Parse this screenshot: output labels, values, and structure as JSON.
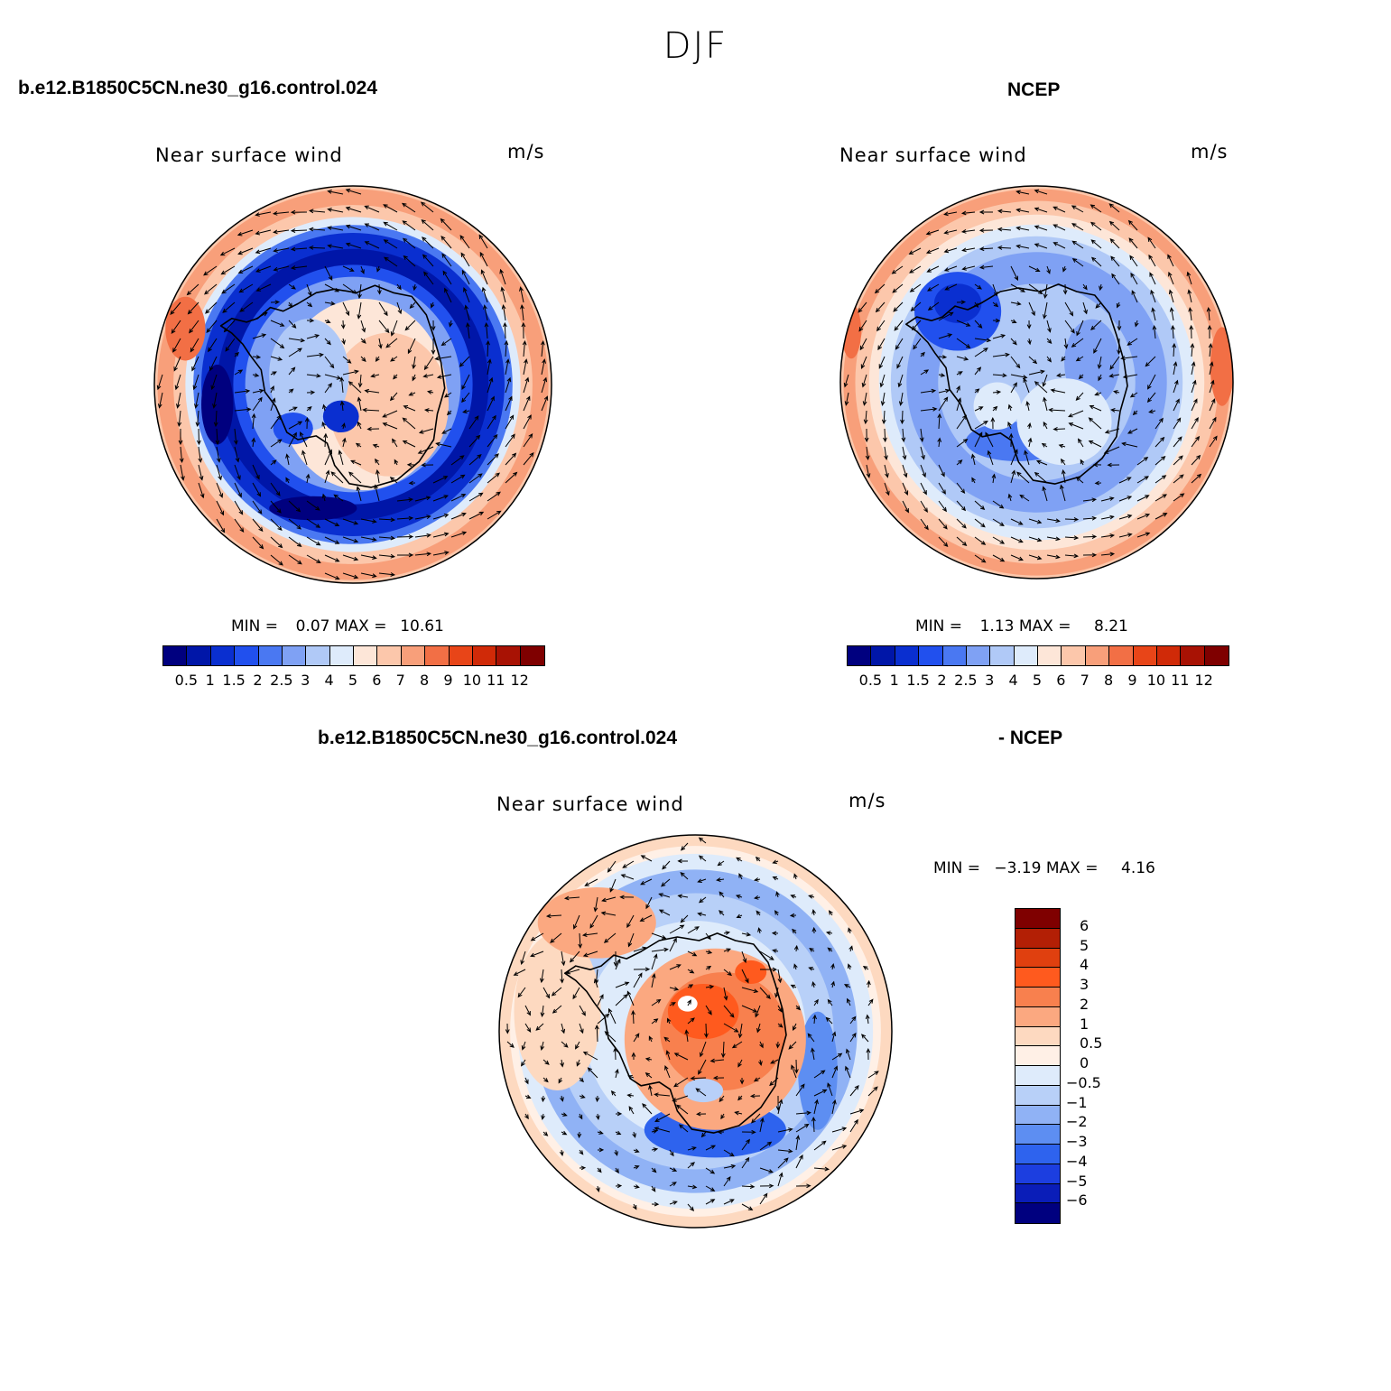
{
  "figure": {
    "title": "DJF"
  },
  "panels": [
    {
      "id": "model",
      "case_title": "b.e12.B1850C5CN.ne30_g16.control.024",
      "left_label": "Near surface wind",
      "right_label": "m/s",
      "min_label": "MIN =",
      "min_value": "0.07",
      "max_label": "MAX =",
      "max_value": "10.61",
      "pattern": "model"
    },
    {
      "id": "obs",
      "case_title": "NCEP",
      "left_label": "Near surface wind",
      "right_label": "m/s",
      "min_label": "MIN =",
      "min_value": "1.13",
      "max_label": "MAX =",
      "max_value": "8.21",
      "pattern": "obs"
    },
    {
      "id": "diff",
      "case_title_left": "b.e12.B1850C5CN.ne30_g16.control.024",
      "case_title_right": "- NCEP",
      "left_label": "Near surface wind",
      "right_label": "m/s",
      "min_label": "MIN =",
      "min_value": "−3.19",
      "max_label": "MAX =",
      "max_value": "4.16",
      "pattern": "diff"
    }
  ],
  "chart_data": {
    "type": "heatmap",
    "map_projection": "south polar stereographic",
    "field": "Near surface wind speed with wind vectors",
    "units": "m/s",
    "season": "DJF",
    "colorbar_wind": {
      "levels": [
        "0.5",
        "1",
        "1.5",
        "2",
        "2.5",
        "3",
        "4",
        "5",
        "6",
        "7",
        "8",
        "9",
        "10",
        "11",
        "12"
      ],
      "colors": [
        "#00007f",
        "#0016a8",
        "#0a2fd0",
        "#2150ee",
        "#4a78f2",
        "#7fa1f4",
        "#b0c9f7",
        "#deebfb",
        "#fde6d8",
        "#fcc7ab",
        "#f89f7a",
        "#f26f45",
        "#e84518",
        "#d02a08",
        "#a81204",
        "#7f0000"
      ]
    },
    "colorbar_diff": {
      "levels": [
        "6",
        "5",
        "4",
        "3",
        "2",
        "1",
        "0.5",
        "0",
        "−0.5",
        "−1",
        "−2",
        "−3",
        "−4",
        "−5",
        "−6"
      ],
      "colors": [
        "#7f0000",
        "#b31f05",
        "#e0400f",
        "#ff5a1e",
        "#f8804e",
        "#fba880",
        "#fdd9c0",
        "#fff0e6",
        "#deebfb",
        "#b8d0f8",
        "#90b2f5",
        "#5d8ef2",
        "#2e63ee",
        "#1c3ee0",
        "#0a1db8",
        "#00007f"
      ]
    },
    "panels": [
      {
        "name": "b.e12.B1850C5CN.ne30_g16.control.024",
        "min": 0.07,
        "max": 10.61
      },
      {
        "name": "NCEP",
        "min": 1.13,
        "max": 8.21
      },
      {
        "name": "b.e12.B1850C5CN.ne30_g16.control.024 - NCEP",
        "min": -3.19,
        "max": 4.16
      }
    ]
  }
}
